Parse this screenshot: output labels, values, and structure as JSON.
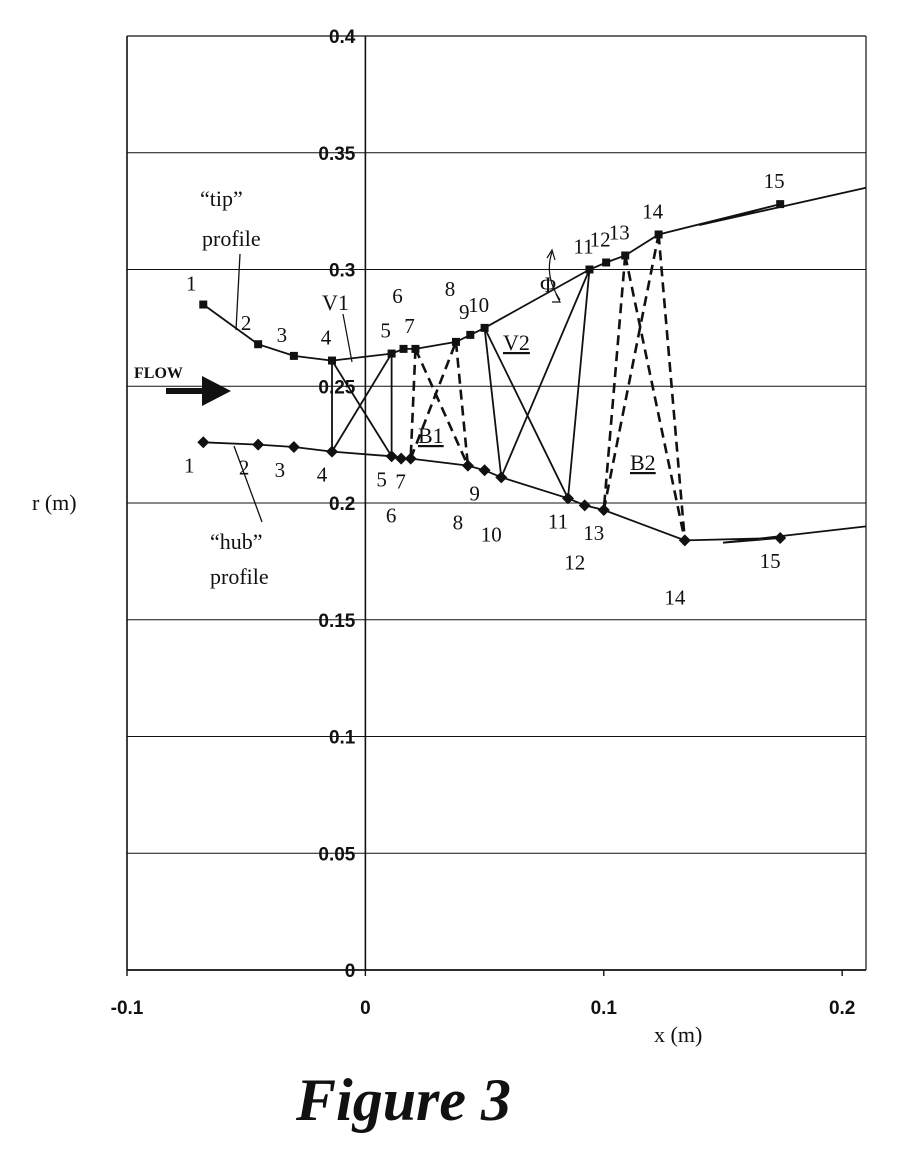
{
  "chart_data": {
    "type": "line",
    "title": "",
    "xlabel": "x (m)",
    "ylabel": "r (m)",
    "xlim": [
      -0.1,
      0.21
    ],
    "ylim": [
      0,
      0.4
    ],
    "grid": "horizontal",
    "x_ticks": [
      {
        "value": -0.1,
        "label": "-0.1"
      },
      {
        "value": 0,
        "label": "0"
      },
      {
        "value": 0.1,
        "label": "0.1"
      },
      {
        "value": 0.2,
        "label": "0.2"
      }
    ],
    "y_ticks": [
      {
        "value": 0,
        "label": "0"
      },
      {
        "value": 0.05,
        "label": "0.05"
      },
      {
        "value": 0.1,
        "label": "0.1"
      },
      {
        "value": 0.15,
        "label": "0.15"
      },
      {
        "value": 0.2,
        "label": "0.2"
      },
      {
        "value": 0.25,
        "label": "0.25"
      },
      {
        "value": 0.3,
        "label": "0.3"
      },
      {
        "value": 0.35,
        "label": "0.35"
      },
      {
        "value": 0.4,
        "label": "0.4"
      }
    ],
    "series": [
      {
        "key": "tip",
        "marker": "square",
        "points": [
          {
            "label": "1",
            "x": -0.068,
            "r": 0.285
          },
          {
            "label": "2",
            "x": -0.045,
            "r": 0.268
          },
          {
            "label": "3",
            "x": -0.03,
            "r": 0.263
          },
          {
            "label": "4",
            "x": -0.014,
            "r": 0.261
          },
          {
            "label": "5",
            "x": 0.011,
            "r": 0.264
          },
          {
            "label": "6",
            "x": 0.016,
            "r": 0.266
          },
          {
            "label": "7",
            "x": 0.021,
            "r": 0.266
          },
          {
            "label": "8",
            "x": 0.038,
            "r": 0.269
          },
          {
            "label": "9",
            "x": 0.044,
            "r": 0.272
          },
          {
            "label": "10",
            "x": 0.05,
            "r": 0.275
          },
          {
            "label": "11",
            "x": 0.094,
            "r": 0.3
          },
          {
            "label": "12",
            "x": 0.101,
            "r": 0.303
          },
          {
            "label": "13",
            "x": 0.109,
            "r": 0.306
          },
          {
            "label": "14",
            "x": 0.123,
            "r": 0.315
          },
          {
            "label": "15",
            "x": 0.174,
            "r": 0.328
          }
        ],
        "curve_extension": [
          {
            "x": 0.14,
            "r": 0.319
          },
          {
            "x": 0.21,
            "r": 0.335
          }
        ]
      },
      {
        "key": "hub",
        "marker": "diamond",
        "points": [
          {
            "label": "1",
            "x": -0.068,
            "r": 0.226
          },
          {
            "label": "2",
            "x": -0.045,
            "r": 0.225
          },
          {
            "label": "3",
            "x": -0.03,
            "r": 0.224
          },
          {
            "label": "4",
            "x": -0.014,
            "r": 0.222
          },
          {
            "label": "5",
            "x": 0.011,
            "r": 0.22
          },
          {
            "label": "6",
            "x": 0.015,
            "r": 0.219
          },
          {
            "label": "7",
            "x": 0.019,
            "r": 0.219
          },
          {
            "label": "8",
            "x": 0.043,
            "r": 0.216
          },
          {
            "label": "9",
            "x": 0.05,
            "r": 0.214
          },
          {
            "label": "10",
            "x": 0.057,
            "r": 0.211
          },
          {
            "label": "11",
            "x": 0.085,
            "r": 0.202
          },
          {
            "label": "12",
            "x": 0.092,
            "r": 0.199
          },
          {
            "label": "13",
            "x": 0.1,
            "r": 0.197
          },
          {
            "label": "14",
            "x": 0.134,
            "r": 0.184
          },
          {
            "label": "15",
            "x": 0.174,
            "r": 0.185
          }
        ],
        "curve_extension": [
          {
            "x": 0.15,
            "r": 0.183
          },
          {
            "x": 0.21,
            "r": 0.19
          }
        ]
      }
    ],
    "rows": [
      {
        "name": "V1",
        "style": "solid",
        "segments": [
          [
            [
              "tip",
              "4"
            ],
            [
              "hub",
              "4"
            ]
          ],
          [
            [
              "hub",
              "4"
            ],
            [
              "tip",
              "5"
            ]
          ],
          [
            [
              "tip",
              "4"
            ],
            [
              "hub",
              "5"
            ]
          ],
          [
            [
              "tip",
              "5"
            ],
            [
              "hub",
              "5"
            ]
          ]
        ]
      },
      {
        "name": "B1",
        "style": "dashed",
        "segments": [
          [
            [
              "tip",
              "7"
            ],
            [
              "hub",
              "7"
            ]
          ],
          [
            [
              "hub",
              "7"
            ],
            [
              "tip",
              "8"
            ]
          ],
          [
            [
              "tip",
              "7"
            ],
            [
              "hub",
              "8"
            ]
          ],
          [
            [
              "tip",
              "8"
            ],
            [
              "hub",
              "8"
            ]
          ]
        ]
      },
      {
        "name": "V2",
        "style": "solid",
        "segments": [
          [
            [
              "tip",
              "10"
            ],
            [
              "hub",
              "10"
            ]
          ],
          [
            [
              "hub",
              "10"
            ],
            [
              "tip",
              "11"
            ]
          ],
          [
            [
              "tip",
              "10"
            ],
            [
              "hub",
              "11"
            ]
          ],
          [
            [
              "tip",
              "11"
            ],
            [
              "hub",
              "11"
            ]
          ]
        ]
      },
      {
        "name": "B2",
        "style": "dashed",
        "segments": [
          [
            [
              "tip",
              "13"
            ],
            [
              "hub",
              "13"
            ]
          ],
          [
            [
              "hub",
              "13"
            ],
            [
              "tip",
              "14"
            ]
          ],
          [
            [
              "tip",
              "13"
            ],
            [
              "hub",
              "14"
            ]
          ],
          [
            [
              "tip",
              "14"
            ],
            [
              "hub",
              "14"
            ]
          ]
        ]
      }
    ],
    "annotations": {
      "tip_profile_line1": "“tip”",
      "tip_profile_line2": "profile",
      "hub_profile_line1": "“hub”",
      "hub_profile_line2": "profile",
      "flow": "FLOW",
      "angle_symbol": "Φ",
      "row_labels": [
        "V1",
        "B1",
        "V2",
        "B2"
      ]
    }
  },
  "caption": "Figure 3"
}
